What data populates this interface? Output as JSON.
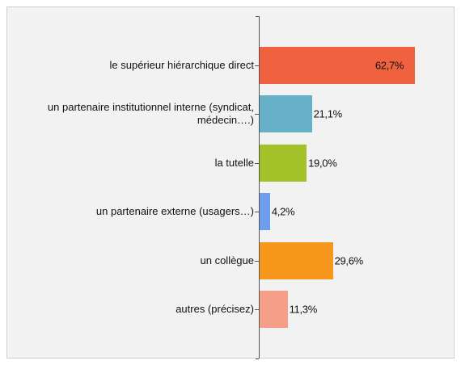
{
  "chart_data": {
    "type": "bar",
    "orientation": "horizontal",
    "categories": [
      "le supérieur hiérarchique direct",
      "un partenaire institutionnel interne (syndicat, médecin….)",
      "la tutelle",
      "un partenaire externe (usagers…)",
      "un collègue",
      "autres (précisez)"
    ],
    "values": [
      62.7,
      21.1,
      19.0,
      4.2,
      29.6,
      11.3
    ],
    "value_labels": [
      "62,7%",
      "21,1%",
      "19,0%",
      "4,2%",
      "29,6%",
      "11,3%"
    ],
    "colors": [
      "#f0623f",
      "#67b1c8",
      "#a3c22a",
      "#6d9eeb",
      "#f7981d",
      "#f59f88"
    ]
  }
}
